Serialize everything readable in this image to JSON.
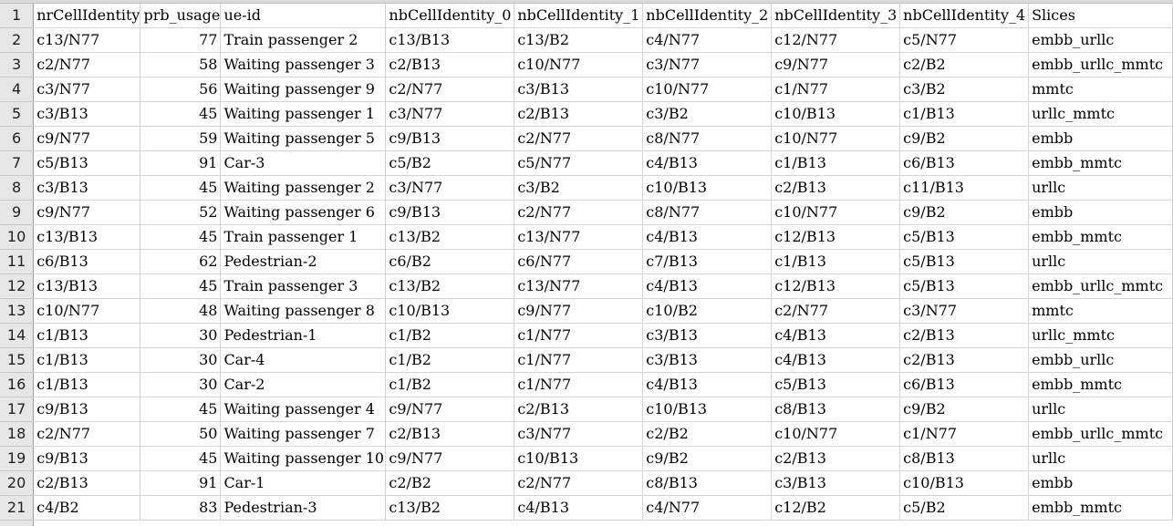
{
  "sheet": {
    "columns": [
      "nrCellIdentity",
      "prb_usage",
      "ue-id",
      "nbCellIdentity_0",
      "nbCellIdentity_1",
      "nbCellIdentity_2",
      "nbCellIdentity_3",
      "nbCellIdentity_4",
      "Slices"
    ],
    "row_numbers": [
      "1",
      "2",
      "3",
      "4",
      "5",
      "6",
      "7",
      "8",
      "9",
      "10",
      "11",
      "12",
      "13",
      "14",
      "15",
      "16",
      "17",
      "18",
      "19",
      "20",
      "21"
    ],
    "rows": [
      [
        "c13/N77",
        "77",
        "Train passenger 2",
        "c13/B13",
        "c13/B2",
        "c4/N77",
        "c12/N77",
        "c5/N77",
        "embb_urllc"
      ],
      [
        "c2/N77",
        "58",
        "Waiting passenger 3",
        "c2/B13",
        "c10/N77",
        "c3/N77",
        "c9/N77",
        "c2/B2",
        "embb_urllc_mmtc"
      ],
      [
        "c3/N77",
        "56",
        "Waiting passenger 9",
        "c2/N77",
        "c3/B13",
        "c10/N77",
        "c1/N77",
        "c3/B2",
        "mmtc"
      ],
      [
        "c3/B13",
        "45",
        "Waiting passenger 1",
        "c3/N77",
        "c2/B13",
        "c3/B2",
        "c10/B13",
        "c1/B13",
        "urllc_mmtc"
      ],
      [
        "c9/N77",
        "59",
        "Waiting passenger 5",
        "c9/B13",
        "c2/N77",
        "c8/N77",
        "c10/N77",
        "c9/B2",
        "embb"
      ],
      [
        "c5/B13",
        "91",
        "Car-3",
        "c5/B2",
        "c5/N77",
        "c4/B13",
        "c1/B13",
        "c6/B13",
        "embb_mmtc"
      ],
      [
        "c3/B13",
        "45",
        "Waiting passenger 2",
        "c3/N77",
        "c3/B2",
        "c10/B13",
        "c2/B13",
        "c11/B13",
        "urllc"
      ],
      [
        "c9/N77",
        "52",
        "Waiting passenger 6",
        "c9/B13",
        "c2/N77",
        "c8/N77",
        "c10/N77",
        "c9/B2",
        "embb"
      ],
      [
        "c13/B13",
        "45",
        "Train passenger 1",
        "c13/B2",
        "c13/N77",
        "c4/B13",
        "c12/B13",
        "c5/B13",
        "embb_mmtc"
      ],
      [
        "c6/B13",
        "62",
        "Pedestrian-2",
        "c6/B2",
        "c6/N77",
        "c7/B13",
        "c1/B13",
        "c5/B13",
        "urllc"
      ],
      [
        "c13/B13",
        "45",
        "Train passenger 3",
        "c13/B2",
        "c13/N77",
        "c4/B13",
        "c12/B13",
        "c5/B13",
        "embb_urllc_mmtc"
      ],
      [
        "c10/N77",
        "48",
        "Waiting passenger 8",
        "c10/B13",
        "c9/N77",
        "c10/B2",
        "c2/N77",
        "c3/N77",
        "mmtc"
      ],
      [
        "c1/B13",
        "30",
        "Pedestrian-1",
        "c1/B2",
        "c1/N77",
        "c3/B13",
        "c4/B13",
        "c2/B13",
        "urllc_mmtc"
      ],
      [
        "c1/B13",
        "30",
        "Car-4",
        "c1/B2",
        "c1/N77",
        "c3/B13",
        "c4/B13",
        "c2/B13",
        "embb_urllc"
      ],
      [
        "c1/B13",
        "30",
        "Car-2",
        "c1/B2",
        "c1/N77",
        "c4/B13",
        "c5/B13",
        "c6/B13",
        "embb_mmtc"
      ],
      [
        "c9/B13",
        "45",
        "Waiting passenger 4",
        "c9/N77",
        "c2/B13",
        "c10/B13",
        "c8/B13",
        "c9/B2",
        "urllc"
      ],
      [
        "c2/N77",
        "50",
        "Waiting passenger 7",
        "c2/B13",
        "c3/N77",
        "c2/B2",
        "c10/N77",
        "c1/N77",
        "embb_urllc_mmtc"
      ],
      [
        "c9/B13",
        "45",
        "Waiting passenger 10",
        "c9/N77",
        "c10/B13",
        "c9/B2",
        "c2/B13",
        "c8/B13",
        "urllc"
      ],
      [
        "c2/B13",
        "91",
        "Car-1",
        "c2/B2",
        "c2/N77",
        "c8/B13",
        "c3/B13",
        "c10/B13",
        "embb"
      ],
      [
        "c4/B2",
        "83",
        "Pedestrian-3",
        "c13/B2",
        "c4/B13",
        "c4/N77",
        "c12/B2",
        "c5/B2",
        "embb_mmtc"
      ]
    ]
  }
}
